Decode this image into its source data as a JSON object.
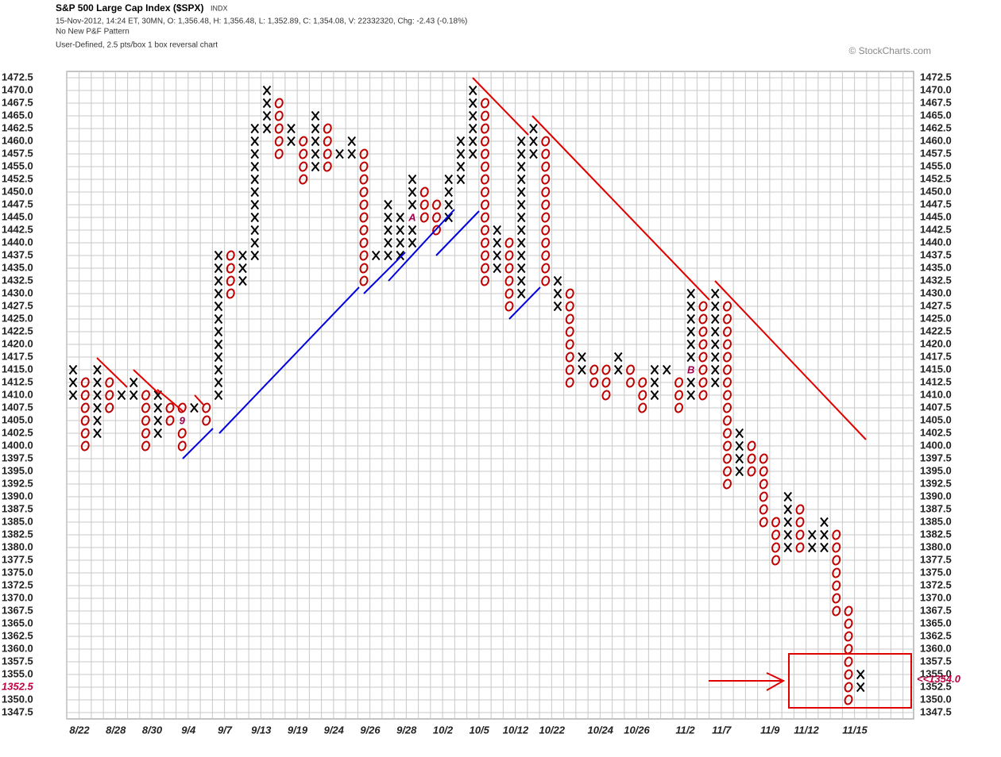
{
  "chart_data": {
    "type": "point-and-figure",
    "title": "S&P 500 Large Cap Index ($SPX)",
    "exchange": "INDX",
    "info": "15-Nov-2012, 14:24 ET, 30MN, O: 1,356.48, H: 1,356.48, L: 1,352.89, C: 1,354.08, V: 22332320, Chg: -2.43 (-0.18%)",
    "pattern": "No New P&F Pattern",
    "settings_text": "User-Defined, 2.5 pts/box 1 box reversal chart",
    "credit": "© StockCharts.com",
    "box_size": 2.5,
    "x_color": "#000000",
    "o_color": "#c00000",
    "grid": true,
    "ylim": [
      1346.25,
      1473.75
    ],
    "yticks": [
      1347.5,
      {
        "value": 1350,
        "label": "1350.0"
      },
      1352.5,
      {
        "value": 1355,
        "label": "1355.0"
      },
      1357.5,
      {
        "value": 1360,
        "label": "1360.0"
      },
      1362.5,
      {
        "value": 1365,
        "label": "1365.0"
      },
      1367.5,
      {
        "value": 1370,
        "label": "1370.0"
      },
      1372.5,
      {
        "value": 1375,
        "label": "1375.0"
      },
      1377.5,
      {
        "value": 1380,
        "label": "1380.0"
      },
      1382.5,
      {
        "value": 1385,
        "label": "1385.0"
      },
      1387.5,
      {
        "value": 1390,
        "label": "1390.0"
      },
      1392.5,
      {
        "value": 1395,
        "label": "1395.0"
      },
      1397.5,
      {
        "value": 1400,
        "label": "1400.0"
      },
      1402.5,
      {
        "value": 1405,
        "label": "1405.0"
      },
      1407.5,
      {
        "value": 1410,
        "label": "1410.0"
      },
      1412.5,
      {
        "value": 1415,
        "label": "1415.0"
      },
      1417.5,
      {
        "value": 1420,
        "label": "1420.0"
      },
      1422.5,
      {
        "value": 1425,
        "label": "1425.0"
      },
      1427.5,
      {
        "value": 1430,
        "label": "1430.0"
      },
      1432.5,
      {
        "value": 1435,
        "label": "1435.0"
      },
      1437.5,
      {
        "value": 1440,
        "label": "1440.0"
      },
      1442.5,
      {
        "value": 1445,
        "label": "1445.0"
      },
      1447.5,
      {
        "value": 1450,
        "label": "1450.0"
      },
      1452.5,
      {
        "value": 1455,
        "label": "1455.0"
      },
      1457.5,
      {
        "value": 1460,
        "label": "1460.0"
      },
      1462.5,
      {
        "value": 1465,
        "label": "1465.0"
      },
      1467.5,
      {
        "value": 1470,
        "label": "1470.0"
      },
      1472.5
    ],
    "highlight_tick": 1352.5,
    "last_price": {
      "value": 1354,
      "label": "<<1354.0"
    },
    "categories": [
      "8/22",
      null,
      null,
      "8/28",
      null,
      null,
      "8/30",
      null,
      null,
      "9/4",
      null,
      null,
      "9/7",
      null,
      null,
      "9/13",
      null,
      null,
      "9/19",
      null,
      null,
      "9/24",
      null,
      null,
      "9/26",
      null,
      null,
      "9/28",
      null,
      null,
      "10/2",
      null,
      null,
      "10/5",
      null,
      null,
      "10/12",
      null,
      null,
      "10/22",
      null,
      null,
      null,
      "10/24",
      null,
      null,
      "10/26",
      null,
      null,
      null,
      "11/2",
      null,
      null,
      "11/7",
      null,
      null,
      null,
      "11/9",
      null,
      null,
      "11/12",
      null,
      null,
      null,
      "11/15"
    ],
    "columns": [
      {
        "type": "X",
        "lo": 1410,
        "hi": 1415
      },
      {
        "type": "O",
        "lo": 1400,
        "hi": 1412.5
      },
      {
        "type": "X",
        "lo": 1402.5,
        "hi": 1415
      },
      {
        "type": "O",
        "lo": 1407.5,
        "hi": 1412.5
      },
      {
        "type": "X",
        "lo": 1410,
        "hi": 1410
      },
      {
        "type": "X",
        "lo": 1410,
        "hi": 1412.5
      },
      {
        "type": "O",
        "lo": 1400,
        "hi": 1410
      },
      {
        "type": "X",
        "lo": 1402.5,
        "hi": 1410
      },
      {
        "type": "O",
        "lo": 1405,
        "hi": 1407.5
      },
      {
        "type": "O",
        "lo": 1400,
        "hi": 1407.5,
        "marker": {
          "value": 1405,
          "label": "9"
        }
      },
      {
        "type": "X",
        "lo": 1407.5,
        "hi": 1407.5
      },
      {
        "type": "O",
        "lo": 1405,
        "hi": 1407.5
      },
      {
        "type": "X",
        "lo": 1410,
        "hi": 1437.5
      },
      {
        "type": "O",
        "lo": 1430,
        "hi": 1437.5
      },
      {
        "type": "X",
        "lo": 1432.5,
        "hi": 1437.5
      },
      {
        "type": "X",
        "lo": 1437.5,
        "hi": 1462.5
      },
      {
        "type": "X",
        "lo": 1462.5,
        "hi": 1470
      },
      {
        "type": "O",
        "lo": 1457.5,
        "hi": 1467.5
      },
      {
        "type": "X",
        "lo": 1460,
        "hi": 1462.5
      },
      {
        "type": "O",
        "lo": 1452.5,
        "hi": 1460
      },
      {
        "type": "X",
        "lo": 1455,
        "hi": 1465
      },
      {
        "type": "O",
        "lo": 1455,
        "hi": 1462.5
      },
      {
        "type": "X",
        "lo": 1457.5,
        "hi": 1457.5
      },
      {
        "type": "X",
        "lo": 1457.5,
        "hi": 1460
      },
      {
        "type": "O",
        "lo": 1432.5,
        "hi": 1457.5
      },
      {
        "type": "X",
        "lo": 1437.5,
        "hi": 1437.5
      },
      {
        "type": "X",
        "lo": 1437.5,
        "hi": 1447.5
      },
      {
        "type": "X",
        "lo": 1437.5,
        "hi": 1445
      },
      {
        "type": "X",
        "lo": 1440,
        "hi": 1452.5,
        "marker": {
          "value": 1445,
          "label": "A"
        }
      },
      {
        "type": "O",
        "lo": 1445,
        "hi": 1450
      },
      {
        "type": "O",
        "lo": 1442.5,
        "hi": 1447.5
      },
      {
        "type": "X",
        "lo": 1445,
        "hi": 1452.5
      },
      {
        "type": "X",
        "lo": 1452.5,
        "hi": 1460
      },
      {
        "type": "X",
        "lo": 1457.5,
        "hi": 1470
      },
      {
        "type": "O",
        "lo": 1432.5,
        "hi": 1467.5
      },
      {
        "type": "X",
        "lo": 1435,
        "hi": 1442.5
      },
      {
        "type": "O",
        "lo": 1427.5,
        "hi": 1440
      },
      {
        "type": "X",
        "lo": 1430,
        "hi": 1460
      },
      {
        "type": "X",
        "lo": 1457.5,
        "hi": 1462.5
      },
      {
        "type": "O",
        "lo": 1432.5,
        "hi": 1460
      },
      {
        "type": "X",
        "lo": 1427.5,
        "hi": 1432.5
      },
      {
        "type": "O",
        "lo": 1412.5,
        "hi": 1430
      },
      {
        "type": "X",
        "lo": 1415,
        "hi": 1417.5
      },
      {
        "type": "O",
        "lo": 1412.5,
        "hi": 1415
      },
      {
        "type": "O",
        "lo": 1410,
        "hi": 1415
      },
      {
        "type": "X",
        "lo": 1415,
        "hi": 1417.5
      },
      {
        "type": "O",
        "lo": 1412.5,
        "hi": 1415
      },
      {
        "type": "O",
        "lo": 1407.5,
        "hi": 1412.5
      },
      {
        "type": "X",
        "lo": 1410,
        "hi": 1415
      },
      {
        "type": "X",
        "lo": 1415,
        "hi": 1415
      },
      {
        "type": "O",
        "lo": 1407.5,
        "hi": 1412.5
      },
      {
        "type": "X",
        "lo": 1410,
        "hi": 1430,
        "marker": {
          "value": 1415,
          "label": "B"
        }
      },
      {
        "type": "O",
        "lo": 1410,
        "hi": 1427.5
      },
      {
        "type": "X",
        "lo": 1412.5,
        "hi": 1430
      },
      {
        "type": "O",
        "lo": 1392.5,
        "hi": 1427.5
      },
      {
        "type": "X",
        "lo": 1395,
        "hi": 1402.5
      },
      {
        "type": "O",
        "lo": 1395,
        "hi": 1400
      },
      {
        "type": "O",
        "lo": 1385,
        "hi": 1397.5
      },
      {
        "type": "O",
        "lo": 1377.5,
        "hi": 1385
      },
      {
        "type": "X",
        "lo": 1380,
        "hi": 1390
      },
      {
        "type": "O",
        "lo": 1380,
        "hi": 1387.5
      },
      {
        "type": "X",
        "lo": 1380,
        "hi": 1382.5
      },
      {
        "type": "X",
        "lo": 1380,
        "hi": 1385
      },
      {
        "type": "O",
        "lo": 1367.5,
        "hi": 1382.5
      },
      {
        "type": "O",
        "lo": 1350,
        "hi": 1367.5
      },
      {
        "type": "X",
        "lo": 1352.5,
        "hi": 1355
      }
    ]
  }
}
